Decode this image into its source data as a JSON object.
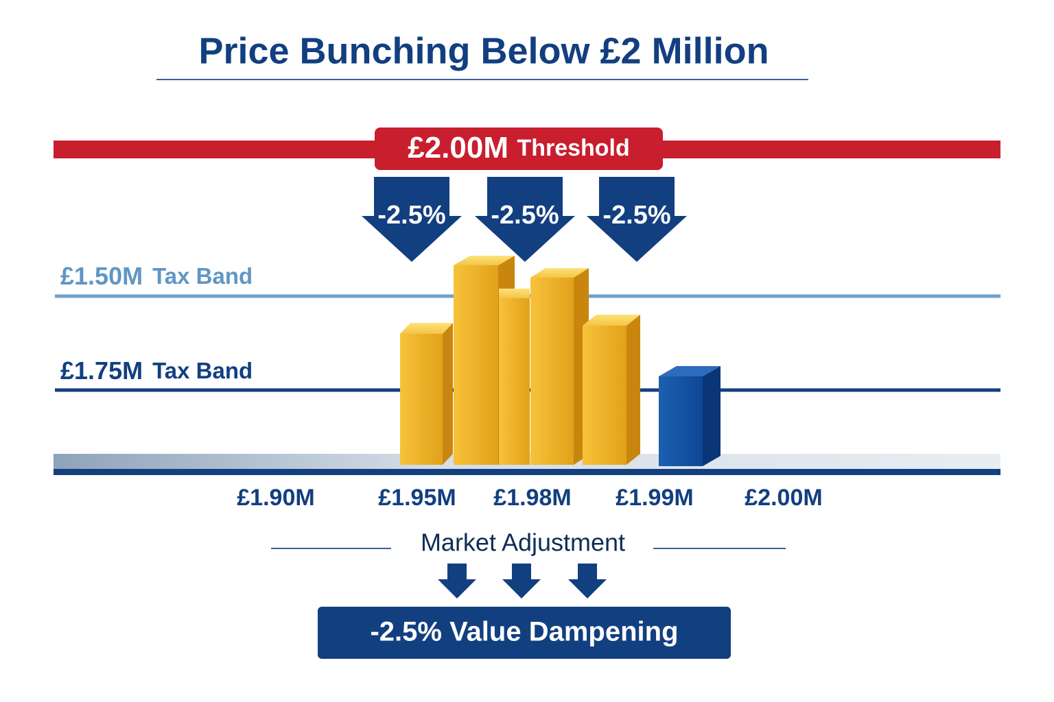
{
  "title": "Price Bunching Below £2 Million",
  "threshold": {
    "amount": "£2.00M",
    "label": "Threshold"
  },
  "arrows": [
    "-2.5%",
    "-2.5%",
    "-2.5%"
  ],
  "bands": [
    {
      "amount": "£1.50M",
      "label": "Tax Band"
    },
    {
      "amount": "£1.75M",
      "label": "Tax Band"
    }
  ],
  "axis_labels": [
    "£1.90M",
    "£1.95M",
    "£1.98M",
    "£1.99M",
    "£2.00M"
  ],
  "adjustment": "Market Adjustment",
  "result": "-2.5% Value Dampening"
}
